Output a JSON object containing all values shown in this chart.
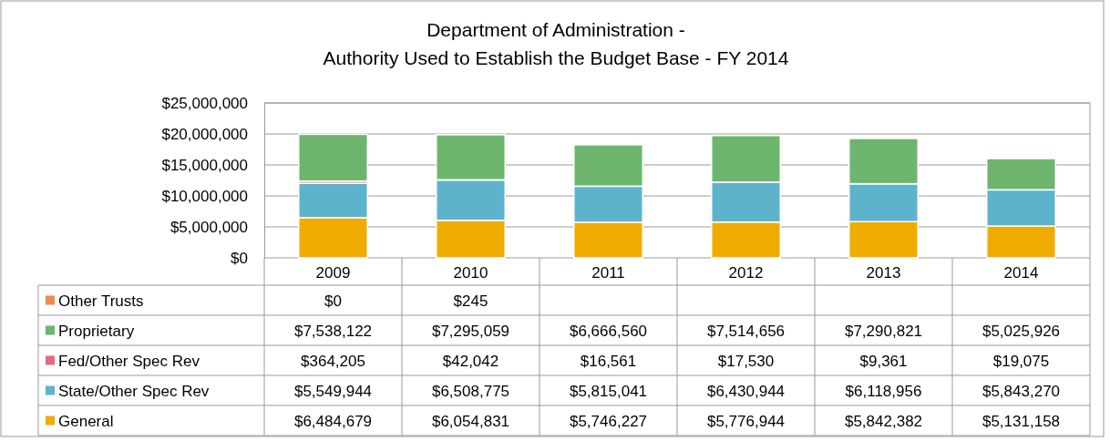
{
  "chart_data": {
    "type": "bar",
    "stacked": true,
    "title": "Department of Administration -\nAuthority Used to Establish the Budget Base - FY 2014",
    "categories": [
      "2009",
      "2010",
      "2011",
      "2012",
      "2013",
      "2014"
    ],
    "series": [
      {
        "name": "General",
        "color": "#f0ab00",
        "values": [
          6484679,
          6054831,
          5746227,
          5776944,
          5842382,
          5131158
        ],
        "value_labels": [
          "$6,484,679",
          "$6,054,831",
          "$5,746,227",
          "$5,776,944",
          "$5,842,382",
          "$5,131,158"
        ]
      },
      {
        "name": "State/Other Spec Rev",
        "color": "#5db3cc",
        "values": [
          5549944,
          6508775,
          5815041,
          6430944,
          6118956,
          5843270
        ],
        "value_labels": [
          "$5,549,944",
          "$6,508,775",
          "$5,815,041",
          "$6,430,944",
          "$6,118,956",
          "$5,843,270"
        ]
      },
      {
        "name": "Fed/Other Spec Rev",
        "color": "#e8667e",
        "values": [
          364205,
          42042,
          16561,
          17530,
          9361,
          19075
        ],
        "value_labels": [
          "$364,205",
          "$42,042",
          "$16,561",
          "$17,530",
          "$9,361",
          "$19,075"
        ]
      },
      {
        "name": "Proprietary",
        "color": "#6db56d",
        "values": [
          7538122,
          7295059,
          6666560,
          7514656,
          7290821,
          5025926
        ],
        "value_labels": [
          "$7,538,122",
          "$7,295,059",
          "$6,666,560",
          "$7,514,656",
          "$7,290,821",
          "$5,025,926"
        ]
      },
      {
        "name": "Other Trusts",
        "color": "#ec8a4f",
        "values": [
          0,
          245,
          null,
          null,
          null,
          null
        ],
        "value_labels": [
          "$0",
          "$245",
          null,
          null,
          null,
          null
        ]
      }
    ],
    "ylim": [
      0,
      25000000
    ],
    "yticks": [
      {
        "value": 0,
        "label": "$0"
      },
      {
        "value": 5000000,
        "label": "$5,000,000"
      },
      {
        "value": 10000000,
        "label": "$10,000,000"
      },
      {
        "value": 15000000,
        "label": "$15,000,000"
      },
      {
        "value": 20000000,
        "label": "$20,000,000"
      },
      {
        "value": 25000000,
        "label": "$25,000,000"
      }
    ],
    "grid": "y",
    "legend": "bottom"
  }
}
